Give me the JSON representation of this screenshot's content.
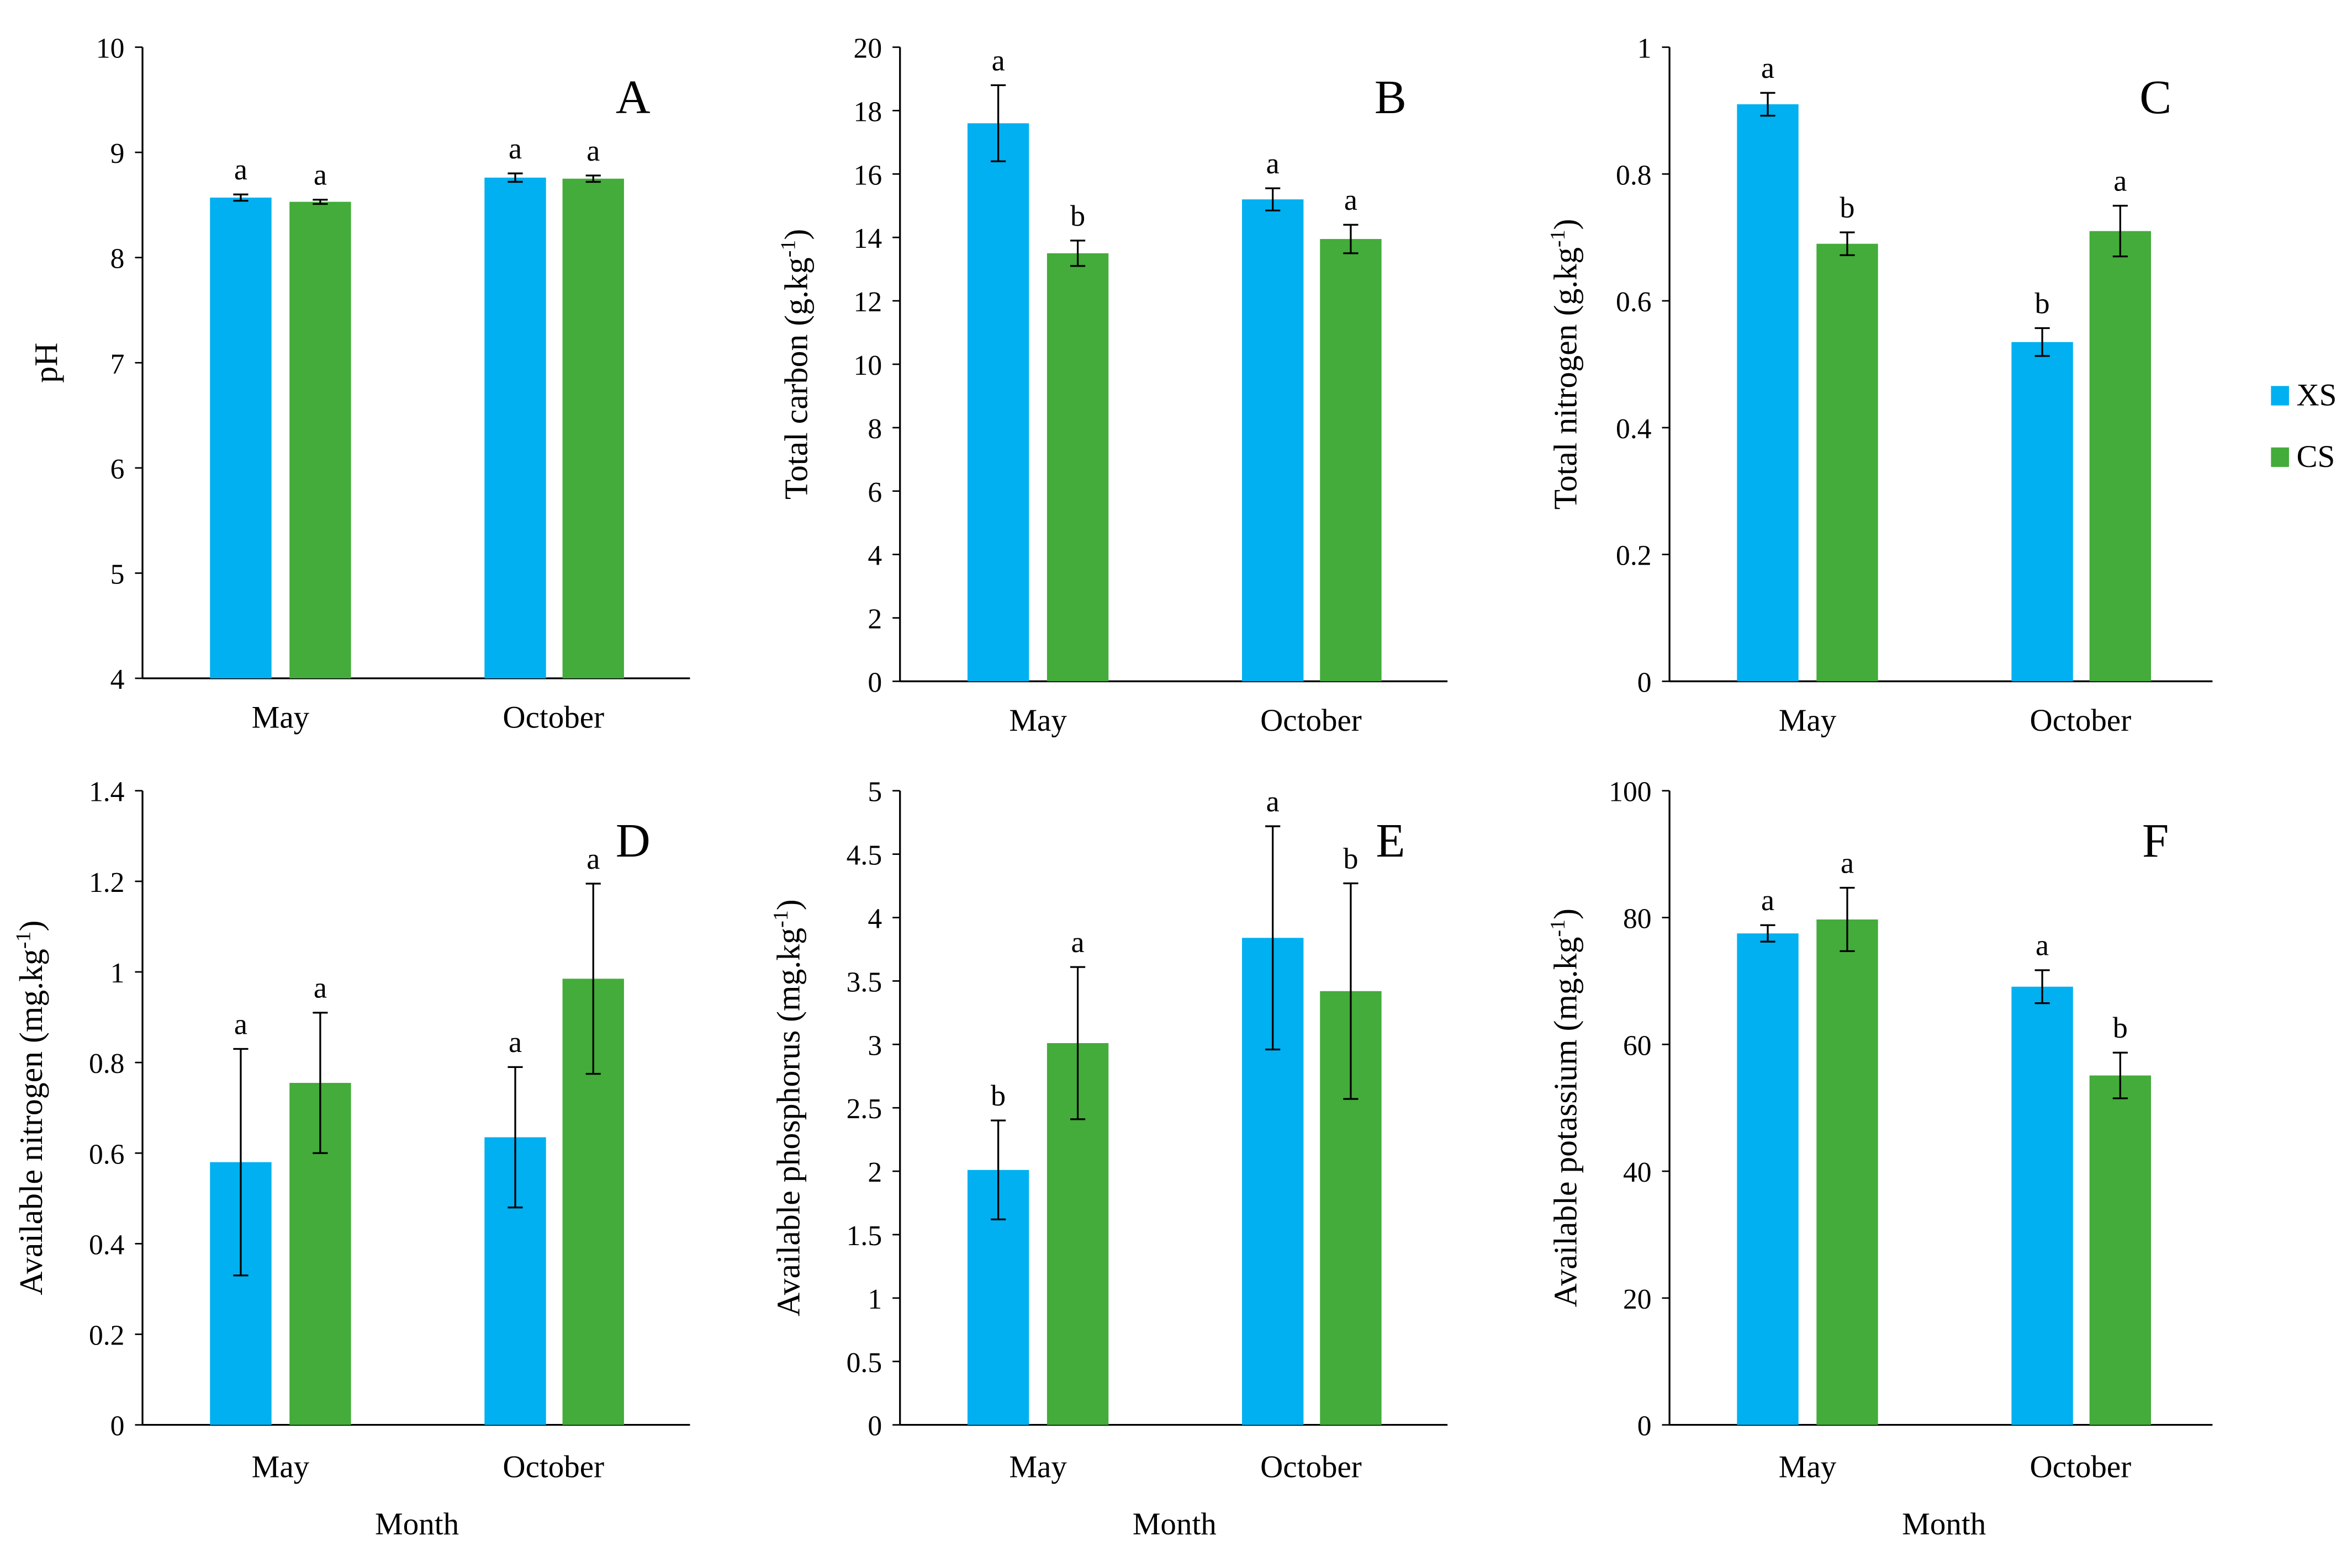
{
  "colors": {
    "XS": "#00B0F0",
    "CS": "#43AC3A"
  },
  "legend": [
    {
      "name": "XS",
      "color": "#00B0F0"
    },
    {
      "name": "CS",
      "color": "#43AC3A"
    }
  ],
  "xlabel": "Month",
  "chart_data": [
    {
      "type": "bar",
      "panel": "A",
      "ylabel": "pH",
      "ylim": [
        4,
        10
      ],
      "ticks": [
        4,
        5,
        6,
        7,
        8,
        9,
        10
      ],
      "categories": [
        "May",
        "October"
      ],
      "series": [
        {
          "name": "XS",
          "values": [
            8.57,
            8.76
          ],
          "errors": [
            0.03,
            0.04
          ],
          "letters": [
            "a",
            "a"
          ]
        },
        {
          "name": "CS",
          "values": [
            8.53,
            8.75
          ],
          "errors": [
            0.02,
            0.03
          ],
          "letters": [
            "a",
            "a"
          ]
        }
      ],
      "show_xlabel": false
    },
    {
      "type": "bar",
      "panel": "B",
      "ylabel": "Total carbon (g.kg",
      "ylabel_sup": "-1",
      "ylabel_end": ")",
      "ylim": [
        0,
        20
      ],
      "ticks": [
        0,
        2,
        4,
        6,
        8,
        10,
        12,
        14,
        16,
        18,
        20
      ],
      "categories": [
        "May",
        "October"
      ],
      "series": [
        {
          "name": "XS",
          "values": [
            17.6,
            15.2
          ],
          "errors": [
            1.2,
            0.35
          ],
          "letters": [
            "a",
            "a"
          ]
        },
        {
          "name": "CS",
          "values": [
            13.5,
            13.95
          ],
          "errors": [
            0.4,
            0.45
          ],
          "letters": [
            "b",
            "a"
          ]
        }
      ],
      "show_xlabel": false
    },
    {
      "type": "bar",
      "panel": "C",
      "ylabel": "Total nitrogen (g.kg",
      "ylabel_sup": "-1",
      "ylabel_end": ")",
      "ylim": [
        0,
        1
      ],
      "ticks": [
        0,
        0.2,
        0.4,
        0.6,
        0.8,
        1
      ],
      "categories": [
        "May",
        "October"
      ],
      "series": [
        {
          "name": "XS",
          "values": [
            0.91,
            0.535
          ],
          "errors": [
            0.018,
            0.022
          ],
          "letters": [
            "a",
            "b"
          ]
        },
        {
          "name": "CS",
          "values": [
            0.69,
            0.71
          ],
          "errors": [
            0.018,
            0.04
          ],
          "letters": [
            "b",
            "a"
          ]
        }
      ],
      "show_xlabel": false
    },
    {
      "type": "bar",
      "panel": "D",
      "ylabel": "Available nitrogen (mg.kg",
      "ylabel_sup": "-1",
      "ylabel_end": ")",
      "ylim": [
        0,
        1.4
      ],
      "ticks": [
        0,
        0.2,
        0.4,
        0.6,
        0.8,
        1,
        1.2,
        1.4
      ],
      "categories": [
        "May",
        "October"
      ],
      "series": [
        {
          "name": "XS",
          "values": [
            0.58,
            0.635
          ],
          "errors": [
            0.25,
            0.155
          ],
          "letters": [
            "a",
            "a"
          ]
        },
        {
          "name": "CS",
          "values": [
            0.755,
            0.985
          ],
          "errors": [
            0.155,
            0.21
          ],
          "letters": [
            "a",
            "a"
          ]
        }
      ],
      "show_xlabel": true
    },
    {
      "type": "bar",
      "panel": "E",
      "ylabel": "Available phosphorus (mg.kg",
      "ylabel_sup": "-1",
      "ylabel_end": ")",
      "ylim": [
        0,
        5
      ],
      "ticks": [
        0,
        0.5,
        1,
        1.5,
        2,
        2.5,
        3,
        3.5,
        4,
        4.5,
        5
      ],
      "categories": [
        "May",
        "October"
      ],
      "series": [
        {
          "name": "XS",
          "values": [
            2.01,
            3.84
          ],
          "errors": [
            0.39,
            0.88
          ],
          "letters": [
            "b",
            "a"
          ]
        },
        {
          "name": "CS",
          "values": [
            3.01,
            3.42
          ],
          "errors": [
            0.6,
            0.85
          ],
          "letters": [
            "a",
            "b"
          ]
        }
      ],
      "show_xlabel": true
    },
    {
      "type": "bar",
      "panel": "F",
      "ylabel": "Available potassium (mg.kg",
      "ylabel_sup": "-1",
      "ylabel_end": ")",
      "ylim": [
        0,
        100
      ],
      "ticks": [
        0,
        20,
        40,
        60,
        80,
        100
      ],
      "categories": [
        "May",
        "October"
      ],
      "series": [
        {
          "name": "XS",
          "values": [
            77.5,
            69.1
          ],
          "errors": [
            1.3,
            2.6
          ],
          "letters": [
            "a",
            "a"
          ]
        },
        {
          "name": "CS",
          "values": [
            79.7,
            55.1
          ],
          "errors": [
            5,
            3.6
          ],
          "letters": [
            "a",
            "b"
          ]
        }
      ],
      "show_xlabel": true
    }
  ]
}
